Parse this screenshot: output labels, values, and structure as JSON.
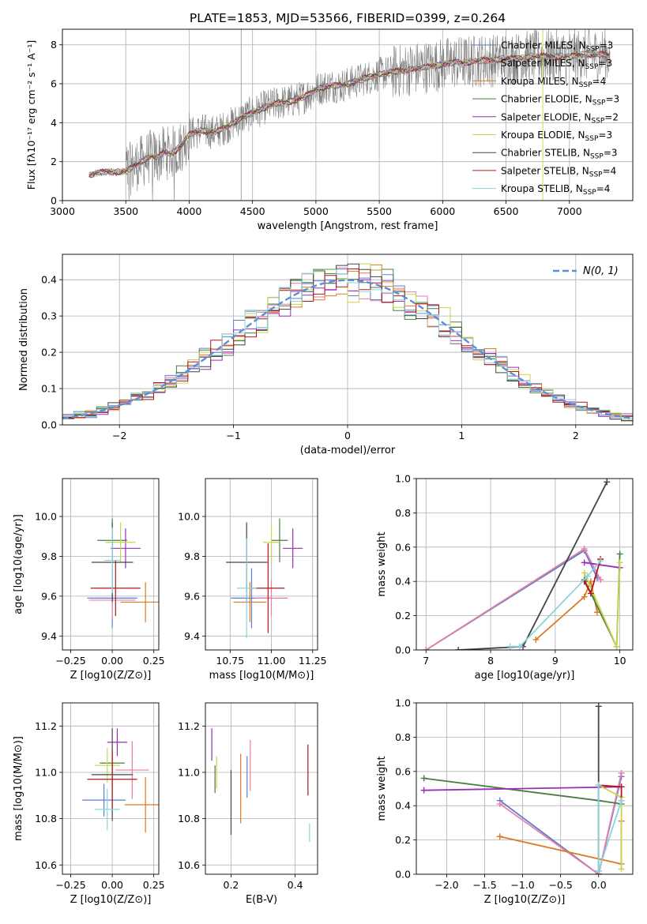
{
  "figure": {
    "title": "PLATE=1853, MJD=53566, FIBERID=0399, z=0.264"
  },
  "legend_entries": [
    {
      "base": "Chabrier MILES, N",
      "sub": "SSP",
      "tail": "=3",
      "color": "#5b7fd0"
    },
    {
      "base": "Salpeter MILES, N",
      "sub": "SSP",
      "tail": "=3",
      "color": "#e67ea8"
    },
    {
      "base": "Kroupa MILES, N",
      "sub": "SSP",
      "tail": "=4",
      "color": "#dd7a24"
    },
    {
      "base": "Chabrier ELODIE, N",
      "sub": "SSP",
      "tail": "=3",
      "color": "#4a7d45"
    },
    {
      "base": "Salpeter ELODIE, N",
      "sub": "SSP",
      "tail": "=2",
      "color": "#9b2db8"
    },
    {
      "base": "Kroupa ELODIE, N",
      "sub": "SSP",
      "tail": "=3",
      "color": "#c8d64a"
    },
    {
      "base": "Chabrier STELIB, N",
      "sub": "SSP",
      "tail": "=3",
      "color": "#444444"
    },
    {
      "base": "Salpeter STELIB, N",
      "sub": "SSP",
      "tail": "=4",
      "color": "#b01818"
    },
    {
      "base": "Kroupa STELIB, N",
      "sub": "SSP",
      "tail": "=4",
      "color": "#8ad4dc"
    }
  ],
  "chart_data": [
    {
      "id": "spectrum",
      "type": "line",
      "title": "PLATE=1853, MJD=53566, FIBERID=0399, z=0.264",
      "xlabel": "wavelength [Angstrom, rest frame]",
      "ylabel": "Flux [fλ10⁻¹⁷ erg cm⁻² s⁻¹ A⁻¹]",
      "xlim": [
        3000,
        7500
      ],
      "ylim": [
        0,
        8.8
      ],
      "xticks": [
        "3000",
        "3500",
        "4000",
        "4500",
        "5000",
        "5500",
        "6000",
        "6500",
        "7000"
      ],
      "yticks": [
        "0",
        "2",
        "4",
        "6",
        "8"
      ],
      "data_color": "#808080",
      "model_x": [
        3210,
        3300,
        3400,
        3450,
        3500,
        3550,
        3600,
        3650,
        3700,
        3750,
        3800,
        3850,
        3900,
        3950,
        4000,
        4100,
        4200,
        4300,
        4400,
        4500,
        4600,
        4700,
        4800,
        4900,
        5000,
        5100,
        5200,
        5300,
        5400,
        5500,
        5600,
        5700,
        5800,
        5900,
        6000,
        6100,
        6200,
        6300,
        6400,
        6500,
        6600,
        6700,
        6800,
        6900,
        7000,
        7100,
        7200,
        7300
      ],
      "model_y": [
        1.3,
        1.45,
        1.5,
        1.45,
        1.5,
        1.7,
        1.9,
        2.1,
        2.3,
        2.2,
        2.5,
        2.4,
        2.6,
        2.9,
        3.4,
        3.6,
        3.5,
        3.8,
        4.2,
        4.5,
        4.8,
        5.0,
        5.1,
        5.3,
        5.7,
        5.9,
        5.9,
        6.1,
        6.3,
        6.5,
        6.6,
        6.7,
        6.8,
        6.9,
        7.0,
        7.1,
        7.1,
        7.2,
        7.2,
        7.3,
        7.3,
        7.4,
        7.4,
        7.4,
        7.4,
        7.5,
        7.5,
        7.5
      ]
    },
    {
      "id": "residual-histogram",
      "type": "line",
      "xlabel": "(data-model)/error",
      "ylabel": "Normed distribution",
      "xlim": [
        -2.5,
        2.5
      ],
      "ylim": [
        0,
        0.47
      ],
      "xticks": [
        "−2",
        "−1",
        "0",
        "1",
        "2"
      ],
      "yticks": [
        "0.0",
        "0.1",
        "0.2",
        "0.3",
        "0.4"
      ],
      "legend_label": "N(0, 1)",
      "series": [
        {
          "name": "N(0, 1)",
          "function": "gaussian",
          "mean": 0,
          "sigma": 1
        }
      ]
    },
    {
      "id": "age-vs-Z",
      "type": "scatter",
      "xlabel": "Z [log10(Z/Z⊙)]",
      "ylabel": "age [log10(age/yr)]",
      "xlim": [
        -0.3,
        0.28
      ],
      "ylim": [
        9.33,
        10.19
      ],
      "xticks": [
        "−0.25",
        "0.00",
        "0.25"
      ],
      "yticks": [
        "9.4",
        "9.6",
        "9.8",
        "10.0"
      ],
      "points": [
        {
          "x": 0.0,
          "y": 9.59,
          "xerr": 0.3,
          "yerr": 0.3
        },
        {
          "x": 0.0,
          "y": 9.58,
          "xerr": 0.28,
          "yerr": 0.18
        },
        {
          "x": 0.2,
          "y": 9.57,
          "xerr": 0.3,
          "yerr": 0.2
        },
        {
          "x": 0.0,
          "y": 9.88,
          "xerr": 0.18,
          "yerr": 0.22
        },
        {
          "x": 0.08,
          "y": 9.84,
          "xerr": 0.18,
          "yerr": 0.2
        },
        {
          "x": 0.05,
          "y": 9.87,
          "xerr": 0.18,
          "yerr": 0.2
        },
        {
          "x": 0.0,
          "y": 9.77,
          "xerr": 0.25,
          "yerr": 0.4
        },
        {
          "x": 0.02,
          "y": 9.64,
          "xerr": 0.3,
          "yerr": 0.28
        },
        {
          "x": 0.0,
          "y": 9.78,
          "xerr": 0.1,
          "yerr": 0.33
        }
      ]
    },
    {
      "id": "age-vs-mass",
      "type": "scatter",
      "xlabel": "mass [log10(M/M⊙)]",
      "ylabel": "",
      "xlim": [
        10.6,
        11.28
      ],
      "ylim": [
        9.33,
        10.19
      ],
      "xticks": [
        "10.75",
        "11.00",
        "11.25"
      ],
      "yticks": [
        "9.4",
        "9.6",
        "9.8",
        "10.0"
      ],
      "points": [
        {
          "x": 10.88,
          "y": 9.59,
          "xerr": 0.25,
          "yerr": 0.3
        },
        {
          "x": 11.0,
          "y": 9.59,
          "xerr": 0.2,
          "yerr": 0.18
        },
        {
          "x": 10.87,
          "y": 9.57,
          "xerr": 0.2,
          "yerr": 0.2
        },
        {
          "x": 11.05,
          "y": 9.88,
          "xerr": 0.1,
          "yerr": 0.22
        },
        {
          "x": 11.13,
          "y": 9.84,
          "xerr": 0.12,
          "yerr": 0.2
        },
        {
          "x": 11.0,
          "y": 9.87,
          "xerr": 0.1,
          "yerr": 0.2
        },
        {
          "x": 10.85,
          "y": 9.77,
          "xerr": 0.25,
          "yerr": 0.4
        },
        {
          "x": 10.98,
          "y": 9.64,
          "xerr": 0.2,
          "yerr": 0.45
        },
        {
          "x": 10.85,
          "y": 9.64,
          "xerr": 0.12,
          "yerr": 0.5
        }
      ]
    },
    {
      "id": "mass-weight-vs-age",
      "type": "line",
      "xlabel": "age [log10(age/yr)]",
      "ylabel": "mass weight",
      "xlim": [
        6.85,
        10.2
      ],
      "ylim": [
        0,
        1.0
      ],
      "xticks": [
        "7",
        "8",
        "9",
        "10"
      ],
      "yticks": [
        "0.0",
        "0.2",
        "0.4",
        "0.6",
        "0.8",
        "1.0"
      ],
      "series": [
        {
          "x": [
            7.0,
            9.45,
            9.65
          ],
          "y": [
            0.0,
            0.58,
            0.42
          ]
        },
        {
          "x": [
            7.0,
            9.45,
            9.7
          ],
          "y": [
            0.0,
            0.59,
            0.41
          ]
        },
        {
          "x": [
            8.7,
            9.45,
            9.55,
            9.65
          ],
          "y": [
            0.06,
            0.31,
            0.4,
            0.22
          ]
        },
        {
          "x": [
            9.45,
            9.95,
            10.0
          ],
          "y": [
            0.41,
            0.02,
            0.56
          ]
        },
        {
          "x": [
            9.45,
            10.0
          ],
          "y": [
            0.51,
            0.48
          ]
        },
        {
          "x": [
            9.45,
            9.95,
            10.0
          ],
          "y": [
            0.45,
            0.02,
            0.51
          ]
        },
        {
          "x": [
            7.5,
            8.5,
            9.8
          ],
          "y": [
            0.0,
            0.02,
            0.98
          ]
        },
        {
          "x": [
            9.45,
            9.55,
            9.7
          ],
          "y": [
            0.4,
            0.33,
            0.53
          ]
        },
        {
          "x": [
            8.3,
            8.45,
            9.5,
            9.7
          ],
          "y": [
            0.02,
            0.02,
            0.43,
            0.52
          ]
        }
      ]
    },
    {
      "id": "mass-vs-Z",
      "type": "scatter",
      "xlabel": "Z [log10(Z/Z⊙)]",
      "ylabel": "mass [log10(M/M⊙)]",
      "xlim": [
        -0.3,
        0.28
      ],
      "ylim": [
        10.56,
        11.3
      ],
      "xticks": [
        "−0.25",
        "0.00",
        "0.25"
      ],
      "yticks": [
        "10.6",
        "10.8",
        "11.0",
        "11.2"
      ],
      "points": [
        {
          "x": -0.05,
          "y": 10.88,
          "xerr": 0.26,
          "yerr": 0.14
        },
        {
          "x": 0.12,
          "y": 11.01,
          "xerr": 0.2,
          "yerr": 0.25
        },
        {
          "x": 0.2,
          "y": 10.86,
          "xerr": 0.25,
          "yerr": 0.24
        },
        {
          "x": 0.0,
          "y": 11.04,
          "xerr": 0.15,
          "yerr": 0.1
        },
        {
          "x": 0.03,
          "y": 11.13,
          "xerr": 0.12,
          "yerr": 0.12
        },
        {
          "x": -0.03,
          "y": 11.03,
          "xerr": 0.15,
          "yerr": 0.15
        },
        {
          "x": 0.0,
          "y": 10.99,
          "xerr": 0.25,
          "yerr": 0.4
        },
        {
          "x": 0.0,
          "y": 10.97,
          "xerr": 0.3,
          "yerr": 0.25
        },
        {
          "x": -0.03,
          "y": 10.84,
          "xerr": 0.15,
          "yerr": 0.18
        }
      ]
    },
    {
      "id": "mass-vs-ebv",
      "type": "scatter",
      "xlabel": "E(B-V)",
      "ylabel": "",
      "xlim": [
        0.12,
        0.47
      ],
      "ylim": [
        10.56,
        11.3
      ],
      "xticks": [
        "0.2",
        "0.4"
      ],
      "yticks": [
        "10.6",
        "10.8",
        "11.0",
        "11.2"
      ],
      "points": [
        {
          "x": 0.25,
          "y": 10.98,
          "xerr": 0.0,
          "yerr": 0.18
        },
        {
          "x": 0.26,
          "y": 11.03,
          "xerr": 0.0,
          "yerr": 0.22
        },
        {
          "x": 0.23,
          "y": 10.93,
          "xerr": 0.0,
          "yerr": 0.3
        },
        {
          "x": 0.15,
          "y": 10.97,
          "xerr": 0.0,
          "yerr": 0.12
        },
        {
          "x": 0.14,
          "y": 11.12,
          "xerr": 0.0,
          "yerr": 0.14
        },
        {
          "x": 0.155,
          "y": 11.0,
          "xerr": 0.0,
          "yerr": 0.14
        },
        {
          "x": 0.2,
          "y": 10.87,
          "xerr": 0.0,
          "yerr": 0.28
        },
        {
          "x": 0.44,
          "y": 11.01,
          "xerr": 0.0,
          "yerr": 0.22
        },
        {
          "x": 0.445,
          "y": 10.74,
          "xerr": 0.0,
          "yerr": 0.08
        }
      ]
    },
    {
      "id": "mass-weight-vs-Z",
      "type": "line",
      "xlabel": "Z [log10(Z/Z⊙)]",
      "ylabel": "mass weight",
      "xlim": [
        -2.4,
        0.45
      ],
      "ylim": [
        0,
        1.0
      ],
      "xticks": [
        "−2.0",
        "−1.5",
        "−1.0",
        "−0.5",
        "0.0"
      ],
      "yticks": [
        "0.0",
        "0.2",
        "0.4",
        "0.6",
        "0.8",
        "1.0"
      ],
      "series": [
        {
          "x": [
            -1.3,
            0.0,
            0.3
          ],
          "y": [
            0.43,
            0.0,
            0.57
          ]
        },
        {
          "x": [
            -1.3,
            0.0,
            0.3
          ],
          "y": [
            0.41,
            0.0,
            0.59
          ]
        },
        {
          "x": [
            -1.3,
            0.3,
            0.3
          ],
          "y": [
            0.22,
            0.06,
            0.31
          ]
        },
        {
          "x": [
            -2.3,
            0.0,
            0.3
          ],
          "y": [
            0.56,
            0.43,
            0.41
          ]
        },
        {
          "x": [
            -2.3,
            0.3
          ],
          "y": [
            0.49,
            0.51
          ]
        },
        {
          "x": [
            0.0,
            0.3,
            0.3
          ],
          "y": [
            0.52,
            0.45,
            0.03
          ]
        },
        {
          "x": [
            0.0,
            0.0,
            0.0
          ],
          "y": [
            0.98,
            0.02,
            0.0
          ]
        },
        {
          "x": [
            0.0,
            0.3,
            0.3
          ],
          "y": [
            0.52,
            0.51,
            0.43
          ]
        },
        {
          "x": [
            0.0,
            0.0,
            0.3
          ],
          "y": [
            0.52,
            0.02,
            0.43
          ]
        }
      ]
    }
  ]
}
